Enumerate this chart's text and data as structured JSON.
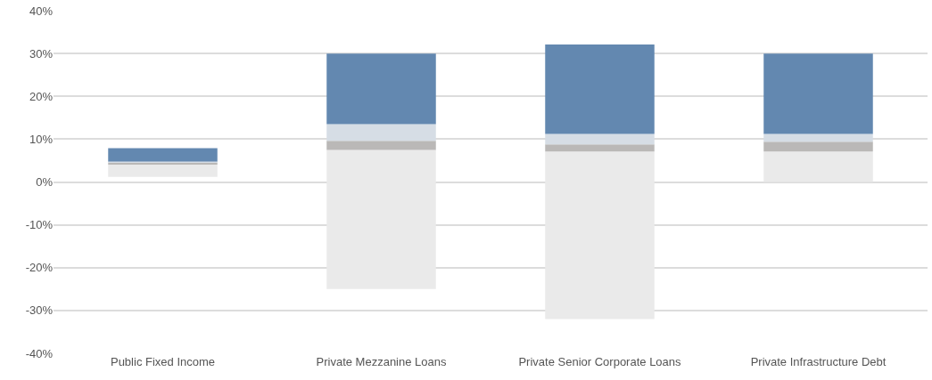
{
  "chart_data": {
    "type": "bar",
    "categories": [
      "Public Fixed Income",
      "Private Mezzanine Loans",
      "Private Senior Corporate Loans",
      "Private Infrastructure Debt"
    ],
    "series": [
      {
        "color": "#eaeaea",
        "base": [
          1.2,
          -25,
          -32,
          0
        ],
        "values": [
          2.9,
          32.5,
          39.1,
          7.1
        ]
      },
      {
        "color": "#bab8b7",
        "base": [
          4.1,
          7.5,
          7.1,
          7.1
        ],
        "values": [
          0.4,
          2.1,
          1.7,
          2.3
        ]
      },
      {
        "color": "#d6dde5",
        "base": [
          4.5,
          9.6,
          8.8,
          9.4
        ],
        "values": [
          0.3,
          3.9,
          2.4,
          1.8
        ]
      },
      {
        "color": "#6388b0",
        "base": [
          4.8,
          13.5,
          11.2,
          11.2
        ],
        "values": [
          3.1,
          16.5,
          20.9,
          18.8
        ]
      }
    ],
    "ylim": [
      -40,
      40
    ],
    "yticks": [
      {
        "value": -40,
        "label": "-40%"
      },
      {
        "value": -30,
        "label": "-30%"
      },
      {
        "value": -20,
        "label": "-20%"
      },
      {
        "value": -10,
        "label": "-10%"
      },
      {
        "value": 0,
        "label": "0%"
      },
      {
        "value": 10,
        "label": "10%"
      },
      {
        "value": 20,
        "label": "20%"
      },
      {
        "value": 30,
        "label": "30%"
      },
      {
        "value": 40,
        "label": "40%"
      }
    ],
    "grid": "y"
  }
}
